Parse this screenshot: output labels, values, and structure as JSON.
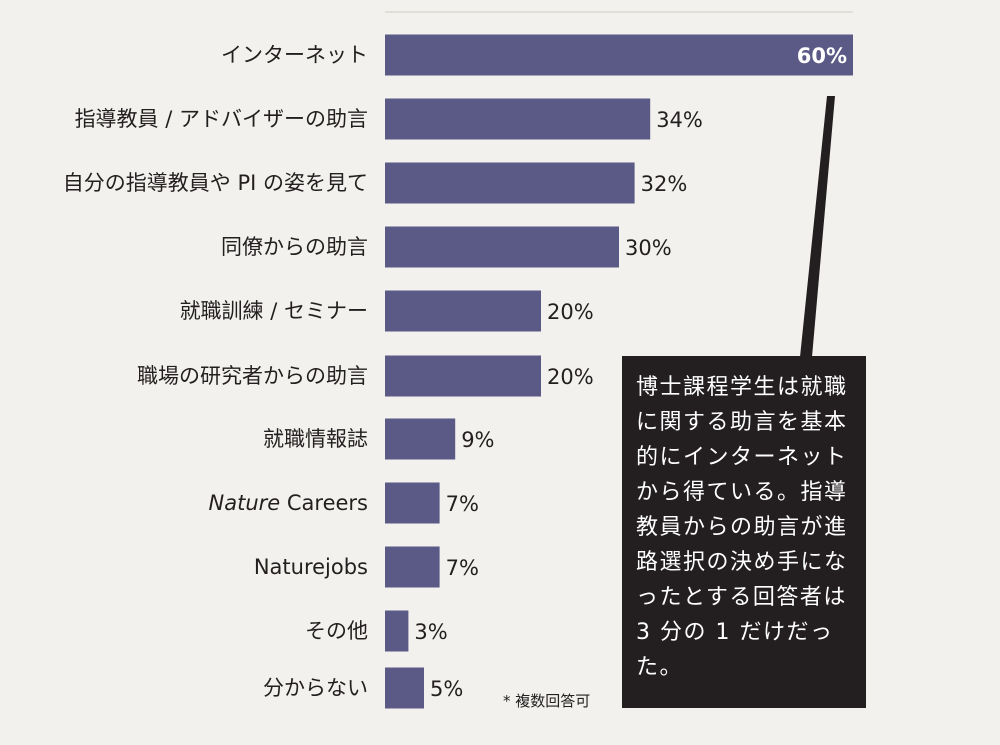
{
  "chart_data": {
    "type": "bar",
    "orientation": "horizontal",
    "categories": [
      "インターネット",
      "指導教員 / アドバイザーの助言",
      "自分の指導教員や PI の姿を見て",
      "同僚からの助言",
      "就職訓練 / セミナー",
      "職場の研究者からの助言",
      "就職情報誌",
      "Nature Careers",
      "Naturejobs",
      "その他",
      "分からない"
    ],
    "values": [
      60,
      34,
      32,
      30,
      20,
      20,
      9,
      7,
      7,
      3,
      5
    ],
    "value_labels": [
      "60%",
      "34%",
      "32%",
      "30%",
      "20%",
      "20%",
      "9%",
      "7%",
      "7%",
      "3%",
      "5%"
    ],
    "xlim": [
      0,
      60
    ],
    "grid": false,
    "legend": "none",
    "bar_color": "#5b5985"
  },
  "callout": {
    "text": "博士課程学生は就職に関する助言を基本的にインターネットから得ている。指導教員からの助言が進路選択の決め手になったとする回答者は 3 分の 1 だけだった。"
  },
  "footnote": "* 複数回答可",
  "colors": {
    "background": "#f2f1ed",
    "bar": "#5b5985",
    "callout_bg": "#231f20",
    "text": "#231f20"
  }
}
